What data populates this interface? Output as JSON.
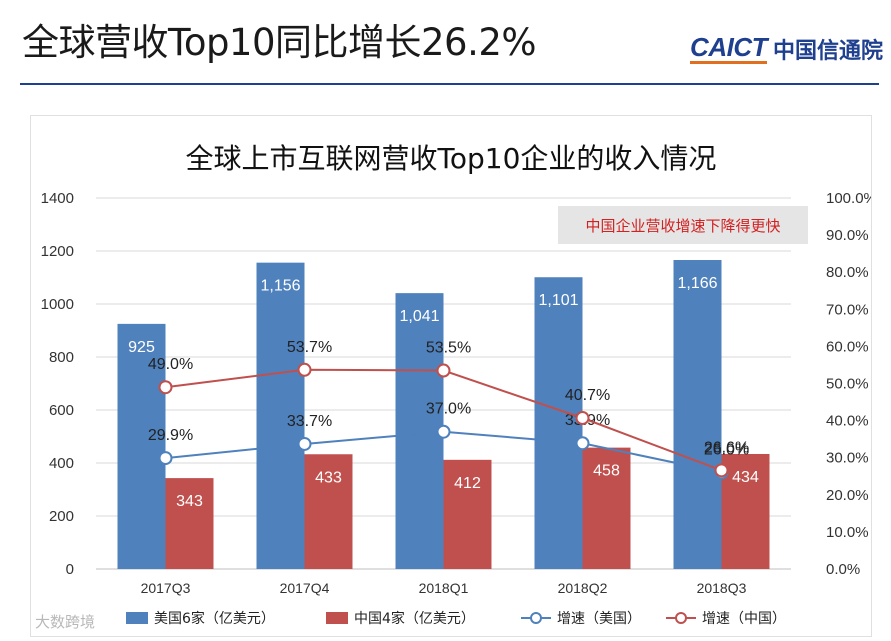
{
  "header": {
    "title": "全球营收Top10同比增长26.2%",
    "logo_text": "CAICT",
    "logo_cn": "中国信通院"
  },
  "corner_mark": "大数跨境",
  "colors": {
    "us_bar": "#4f81bd",
    "cn_bar": "#c0504d",
    "us_line": "#4f81bd",
    "cn_line": "#c0504d",
    "note_text": "#d42020",
    "brand": "#1f3f8f"
  },
  "chart_data": {
    "type": "bar",
    "title": "全球上市互联网营收Top10企业的收入情况",
    "categories": [
      "2017Q3",
      "2017Q4",
      "2018Q1",
      "2018Q2",
      "2018Q3"
    ],
    "ylim": [
      0,
      1400
    ],
    "y_ticks": [
      "0",
      "200",
      "400",
      "600",
      "800",
      "1000",
      "1200",
      "1400"
    ],
    "y2lim": [
      0,
      100
    ],
    "y2_ticks": [
      "0.0%",
      "10.0%",
      "20.0%",
      "30.0%",
      "40.0%",
      "50.0%",
      "60.0%",
      "70.0%",
      "80.0%",
      "90.0%",
      "100.0%"
    ],
    "grid": true,
    "legend_position": "bottom",
    "series": [
      {
        "name": "美国6家（亿美元）",
        "kind": "bar",
        "axis": "left",
        "values": [
          925,
          1156,
          1041,
          1101,
          1166
        ],
        "labels": [
          "925",
          "1,156",
          "1,041",
          "1,101",
          "1,166"
        ]
      },
      {
        "name": "中国4家（亿美元）",
        "kind": "bar",
        "axis": "left",
        "values": [
          343,
          433,
          412,
          458,
          434
        ],
        "labels": [
          "343",
          "433",
          "412",
          "458",
          "434"
        ]
      },
      {
        "name": "增速（美国）",
        "kind": "line",
        "axis": "right",
        "values": [
          29.9,
          33.7,
          37.0,
          33.9,
          26.0
        ],
        "labels": [
          "29.9%",
          "33.7%",
          "37.0%",
          "33.9%",
          "26.0%"
        ]
      },
      {
        "name": "增速（中国）",
        "kind": "line",
        "axis": "right",
        "values": [
          49.0,
          53.7,
          53.5,
          40.7,
          26.6
        ],
        "labels": [
          "49.0%",
          "53.7%",
          "53.5%",
          "40.7%",
          "26.6%"
        ]
      }
    ],
    "annotation": "中国企业营收增速下降得更快"
  }
}
